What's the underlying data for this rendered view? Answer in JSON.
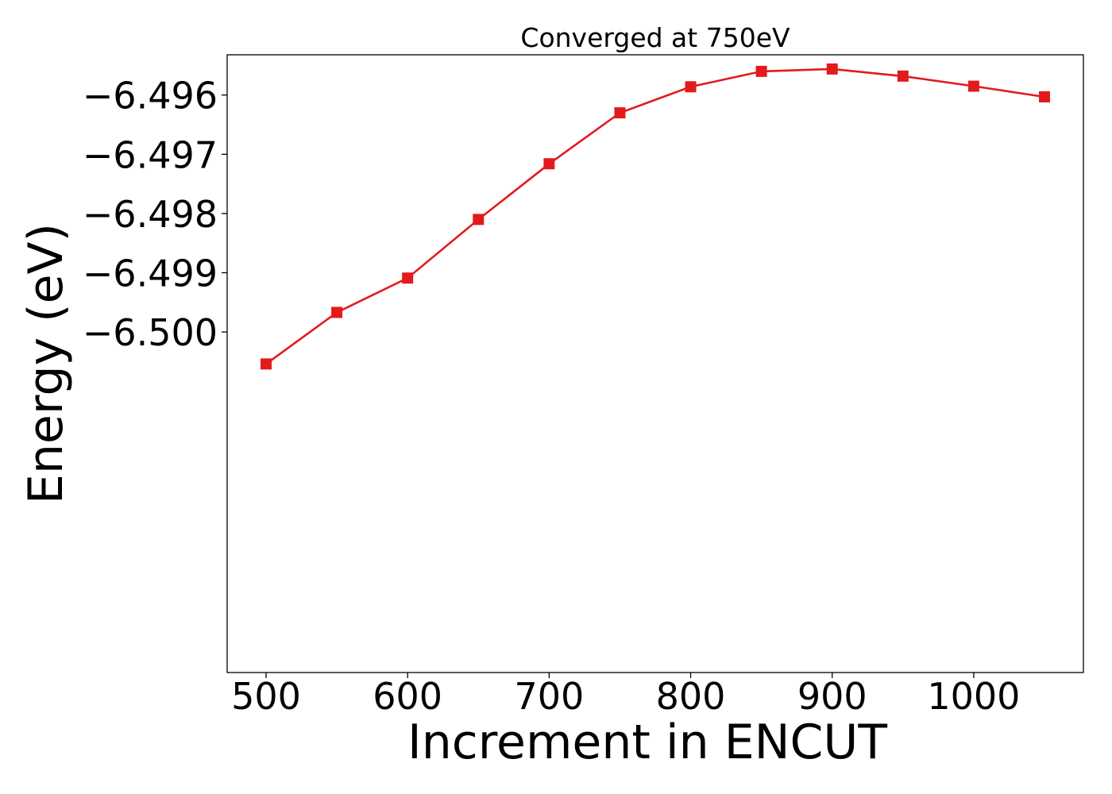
{
  "chart_data": {
    "type": "line",
    "title": "Converged at 750eV",
    "xlabel": "Increment in ENCUT",
    "ylabel": "Energy (eV)",
    "xlim": [
      472.5,
      1077.5
    ],
    "ylim": [
      -6.50575,
      -6.49532
    ],
    "x_ticks": [
      500,
      600,
      700,
      800,
      900,
      1000
    ],
    "x_tick_labels": [
      "500",
      "600",
      "700",
      "800",
      "900",
      "1000"
    ],
    "y_ticks": [
      -6.496,
      -6.497,
      -6.498,
      -6.499,
      -6.5
    ],
    "y_tick_labels": [
      "−6.496",
      "−6.497",
      "−6.498",
      "−6.499",
      "−6.500"
    ],
    "grid": false,
    "series": [
      {
        "color": "#e31a1c",
        "marker": "square",
        "x": [
          500,
          550,
          600,
          650,
          700,
          750,
          800,
          850,
          900,
          950,
          1000,
          1050
        ],
        "y": [
          -6.50054,
          -6.49967,
          -6.49909,
          -6.4981,
          -6.49716,
          -6.4963,
          -6.49586,
          -6.4956,
          -6.49556,
          -6.49568,
          -6.49585,
          -6.49603
        ]
      }
    ]
  }
}
